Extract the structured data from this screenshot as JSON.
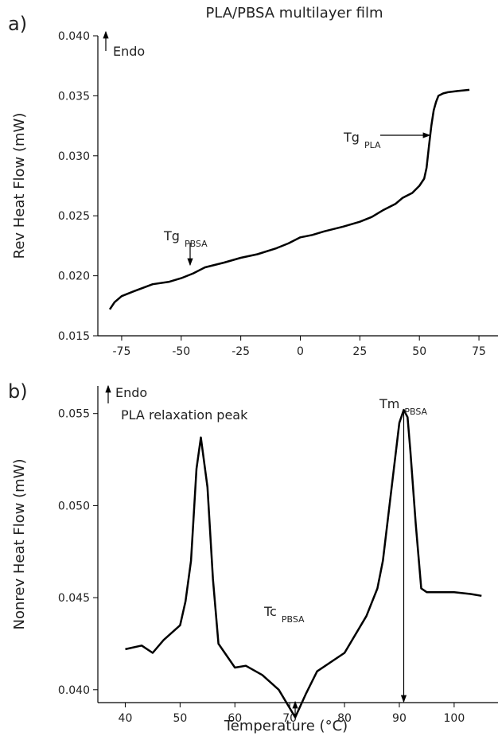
{
  "chart_data": [
    {
      "type": "line",
      "panel_label": "a)",
      "title": "PLA/PBSA multilayer film",
      "y_label": "Rev Heat Flow (mW)",
      "x": [
        -80,
        -78,
        -75,
        -70,
        -62,
        -55,
        -50,
        -45,
        -40,
        -32,
        -25,
        -18,
        -10,
        -5,
        0,
        5,
        10,
        18,
        25,
        30,
        35,
        40,
        43,
        47,
        50,
        52,
        53,
        54,
        55,
        56,
        57,
        58,
        60,
        62,
        66,
        71
      ],
      "series": [
        {
          "name": "Rev Heat Flow",
          "color": "#000000",
          "values": [
            0.0172,
            0.0178,
            0.0183,
            0.0187,
            0.0193,
            0.0195,
            0.0198,
            0.0202,
            0.0207,
            0.0211,
            0.0215,
            0.0218,
            0.0223,
            0.0227,
            0.0232,
            0.0234,
            0.0237,
            0.0241,
            0.0245,
            0.0249,
            0.0255,
            0.026,
            0.0265,
            0.0269,
            0.0275,
            0.0281,
            0.029,
            0.0308,
            0.0325,
            0.0338,
            0.0345,
            0.035,
            0.0352,
            0.0353,
            0.0354,
            0.0355
          ]
        }
      ],
      "xlim": [
        -85,
        83
      ],
      "ylim": [
        0.015,
        0.04
      ],
      "xticks": [
        -75,
        -50,
        -25,
        0,
        25,
        50,
        75
      ],
      "yticks": [
        0.015,
        {
          "value": 0.02,
          "label": "0.020"
        },
        0.025,
        {
          "value": 0.03,
          "label": "0.030"
        },
        0.035,
        {
          "value": 0.04,
          "label": "0.040"
        }
      ],
      "annotations": [
        {
          "text": "Endo"
        },
        {
          "text": "Tg",
          "sub": "PLA"
        },
        {
          "text": "Tg",
          "sub": "PBSA"
        }
      ]
    },
    {
      "type": "line",
      "panel_label": "b)",
      "y_label": "Nonrev Heat Flow (mW)",
      "x_label": "Temperature (°C)",
      "x": [
        40,
        43,
        45,
        47,
        50,
        51,
        52,
        53,
        53.8,
        55,
        56,
        57,
        60,
        62,
        65,
        68,
        71,
        73,
        75,
        80,
        84,
        86,
        87,
        88,
        89,
        90,
        90.8,
        91.5,
        92,
        93,
        94,
        95,
        100,
        103,
        105
      ],
      "series": [
        {
          "name": "Nonrev Heat Flow",
          "color": "#000000",
          "values": [
            0.0422,
            0.0424,
            0.042,
            0.0427,
            0.0435,
            0.0448,
            0.047,
            0.052,
            0.0537,
            0.051,
            0.046,
            0.0425,
            0.0412,
            0.0413,
            0.0408,
            0.04,
            0.0385,
            0.0398,
            0.041,
            0.042,
            0.044,
            0.0455,
            0.047,
            0.0495,
            0.052,
            0.0545,
            0.0552,
            0.0548,
            0.053,
            0.049,
            0.0455,
            0.0453,
            0.0453,
            0.0452,
            0.0451
          ]
        }
      ],
      "xlim": [
        35,
        108
      ],
      "ylim": [
        0.0393,
        0.0565
      ],
      "xticks": [
        40,
        50,
        60,
        70,
        80,
        90,
        100
      ],
      "yticks": [
        {
          "value": 0.04,
          "label": "0.040"
        },
        0.045,
        {
          "value": 0.05,
          "label": "0.050"
        },
        0.055
      ],
      "annotations": [
        {
          "text": "Endo"
        },
        {
          "text": "PLA relaxation peak"
        },
        {
          "text": "Tc",
          "sub": "PBSA"
        },
        {
          "text": "Tm",
          "sub": "PBSA"
        }
      ]
    }
  ]
}
